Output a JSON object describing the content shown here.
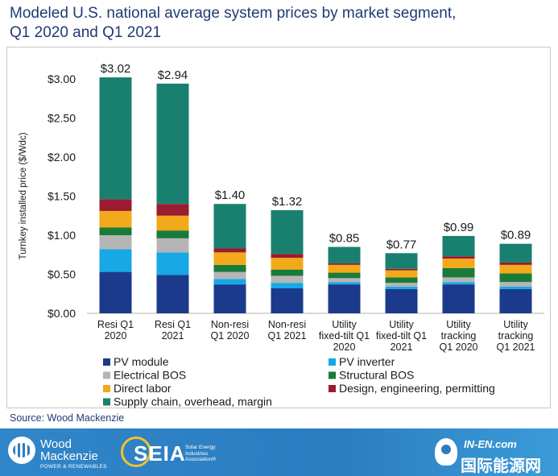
{
  "title": {
    "line1": "Modeled U.S. national average system prices by market segment,",
    "line2": "Q1 2020 and Q1 2021"
  },
  "source": "Source: Wood Mackenzie",
  "footer": {
    "wood_mackenzie": {
      "name_line1": "Wood",
      "name_line2": "Mackenzie",
      "sub": "POWER & RENEWABLES"
    },
    "seia": {
      "wordmark": "SEIA",
      "sub": "Solar Energy Industries Association®"
    },
    "in_en": {
      "top": "IN-EN.com",
      "bottom": "国际能源网"
    }
  },
  "colors": {
    "pv_module": "#1b3a8c",
    "pv_inverter": "#18a8e6",
    "electrical_bos": "#b5b5b5",
    "structural_bos": "#1a7a3a",
    "direct_labor": "#f2a91a",
    "design": "#9b1b30",
    "supply_chain": "#19806f"
  },
  "chart_data": {
    "type": "bar",
    "stacked": true,
    "ylabel": "Turnkey installed price ($/Wdc)",
    "ylim": [
      0,
      3.0
    ],
    "yticks": [
      "$0.00",
      "$0.50",
      "$1.00",
      "$1.50",
      "$2.00",
      "$2.50",
      "$3.00"
    ],
    "ytick_values": [
      0,
      0.5,
      1.0,
      1.5,
      2.0,
      2.5,
      3.0
    ],
    "grid": false,
    "legend_position": "bottom",
    "categories": [
      [
        "Resi Q1",
        "2020"
      ],
      [
        "Resi Q1",
        "2021"
      ],
      [
        "Non-resi",
        "Q1 2020"
      ],
      [
        "Non-resi",
        "Q1 2021"
      ],
      [
        "Utility",
        "fixed-tilt Q1",
        "2020"
      ],
      [
        "Utility",
        "fixed-tilt Q1",
        "2021"
      ],
      [
        "Utility",
        "tracking",
        "Q1 2020"
      ],
      [
        "Utility",
        "tracking",
        "Q1 2021"
      ]
    ],
    "totals": [
      "$3.02",
      "$2.94",
      "$1.40",
      "$1.32",
      "$0.85",
      "$0.77",
      "$0.99",
      "$0.89"
    ],
    "total_values": [
      3.02,
      2.94,
      1.4,
      1.32,
      0.85,
      0.77,
      0.99,
      0.89
    ],
    "series": [
      {
        "name": "PV module",
        "color_key": "pv_module",
        "values": [
          0.53,
          0.49,
          0.37,
          0.32,
          0.37,
          0.31,
          0.37,
          0.31
        ]
      },
      {
        "name": "PV inverter",
        "color_key": "pv_inverter",
        "values": [
          0.29,
          0.29,
          0.07,
          0.07,
          0.03,
          0.03,
          0.03,
          0.03
        ]
      },
      {
        "name": "Electrical BOS",
        "color_key": "electrical_bos",
        "values": [
          0.18,
          0.18,
          0.09,
          0.09,
          0.05,
          0.05,
          0.06,
          0.06
        ]
      },
      {
        "name": "Structural BOS",
        "color_key": "structural_bos",
        "values": [
          0.1,
          0.1,
          0.09,
          0.08,
          0.07,
          0.07,
          0.12,
          0.11
        ]
      },
      {
        "name": "Direct labor",
        "color_key": "direct_labor",
        "values": [
          0.21,
          0.19,
          0.16,
          0.15,
          0.1,
          0.09,
          0.12,
          0.11
        ]
      },
      {
        "name": "Design, engineering, permitting",
        "color_key": "design",
        "values": [
          0.15,
          0.15,
          0.05,
          0.05,
          0.02,
          0.02,
          0.03,
          0.03
        ]
      },
      {
        "name": "Supply chain, overhead, margin",
        "color_key": "supply_chain",
        "values": [
          1.56,
          1.54,
          0.57,
          0.56,
          0.21,
          0.2,
          0.26,
          0.24
        ]
      }
    ]
  }
}
